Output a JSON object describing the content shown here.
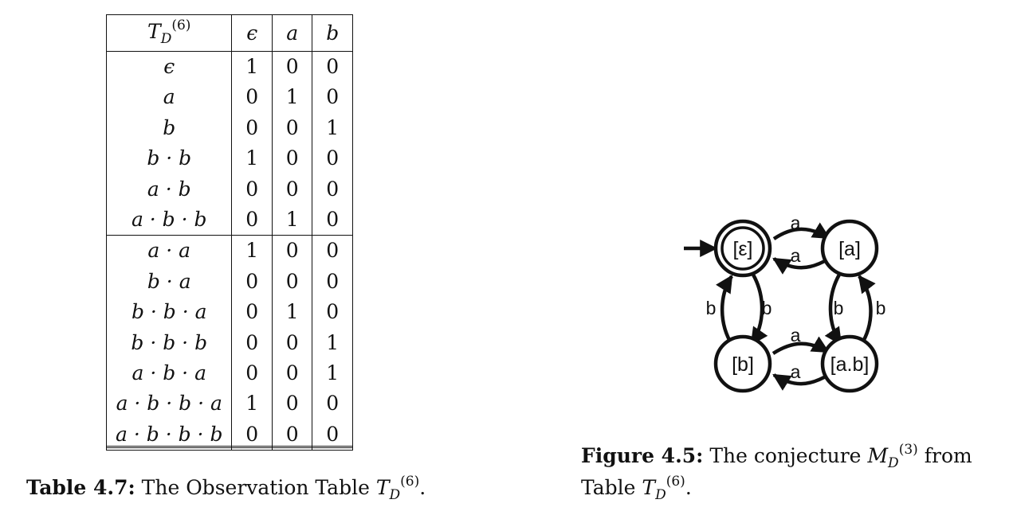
{
  "table": {
    "header": {
      "name_base": "T",
      "name_sub": "D",
      "name_sup": "(6)",
      "columns": [
        "ϵ",
        "a",
        "b"
      ]
    },
    "rows": [
      {
        "prefix": "ϵ",
        "values": [
          "1",
          "0",
          "0"
        ]
      },
      {
        "prefix": "a",
        "values": [
          "0",
          "1",
          "0"
        ]
      },
      {
        "prefix": "b",
        "values": [
          "0",
          "0",
          "1"
        ]
      },
      {
        "prefix": "b · b",
        "values": [
          "1",
          "0",
          "0"
        ]
      },
      {
        "prefix": "a · b",
        "values": [
          "0",
          "0",
          "0"
        ]
      },
      {
        "prefix": "a · b · b",
        "values": [
          "0",
          "1",
          "0"
        ]
      },
      {
        "prefix": "a · a",
        "values": [
          "1",
          "0",
          "0"
        ]
      },
      {
        "prefix": "b · a",
        "values": [
          "0",
          "0",
          "0"
        ]
      },
      {
        "prefix": "b · b · a",
        "values": [
          "0",
          "1",
          "0"
        ]
      },
      {
        "prefix": "b · b · b",
        "values": [
          "0",
          "0",
          "1"
        ]
      },
      {
        "prefix": "a · b · a",
        "values": [
          "0",
          "0",
          "1"
        ]
      },
      {
        "prefix": "a · b · b · a",
        "values": [
          "1",
          "0",
          "0"
        ]
      },
      {
        "prefix": "a · b · b · b",
        "values": [
          "0",
          "0",
          "0"
        ]
      }
    ],
    "separator_after_row": 6
  },
  "table_caption": {
    "label": "Table 4.7:",
    "text": "The Observation Table",
    "sym_base": "T",
    "sym_sub": "D",
    "sym_sup": "(6)",
    "end": "."
  },
  "figure_caption": {
    "label": "Figure 4.5:",
    "text_before": "The conjecture",
    "sym1_base": "M",
    "sym1_sub": "D",
    "sym1_sup": "(3)",
    "text_after": "from",
    "line2_text": "Table",
    "sym2_base": "T",
    "sym2_sub": "D",
    "sym2_sup": "(6)",
    "end": "."
  },
  "automaton": {
    "states": {
      "s_eps": "[ε]",
      "s_a": "[a]",
      "s_b": "[b]",
      "s_ab": "[a.b]"
    },
    "initial": "s_eps",
    "accepting": [
      "s_eps"
    ],
    "transitions": [
      {
        "from": "s_eps",
        "to": "s_a",
        "label": "a"
      },
      {
        "from": "s_a",
        "to": "s_eps",
        "label": "a"
      },
      {
        "from": "s_eps",
        "to": "s_b",
        "label": "b"
      },
      {
        "from": "s_b",
        "to": "s_eps",
        "label": "b"
      },
      {
        "from": "s_a",
        "to": "s_ab",
        "label": "b"
      },
      {
        "from": "s_ab",
        "to": "s_a",
        "label": "b"
      },
      {
        "from": "s_b",
        "to": "s_ab",
        "label": "a"
      },
      {
        "from": "s_ab",
        "to": "s_b",
        "label": "a"
      }
    ]
  }
}
